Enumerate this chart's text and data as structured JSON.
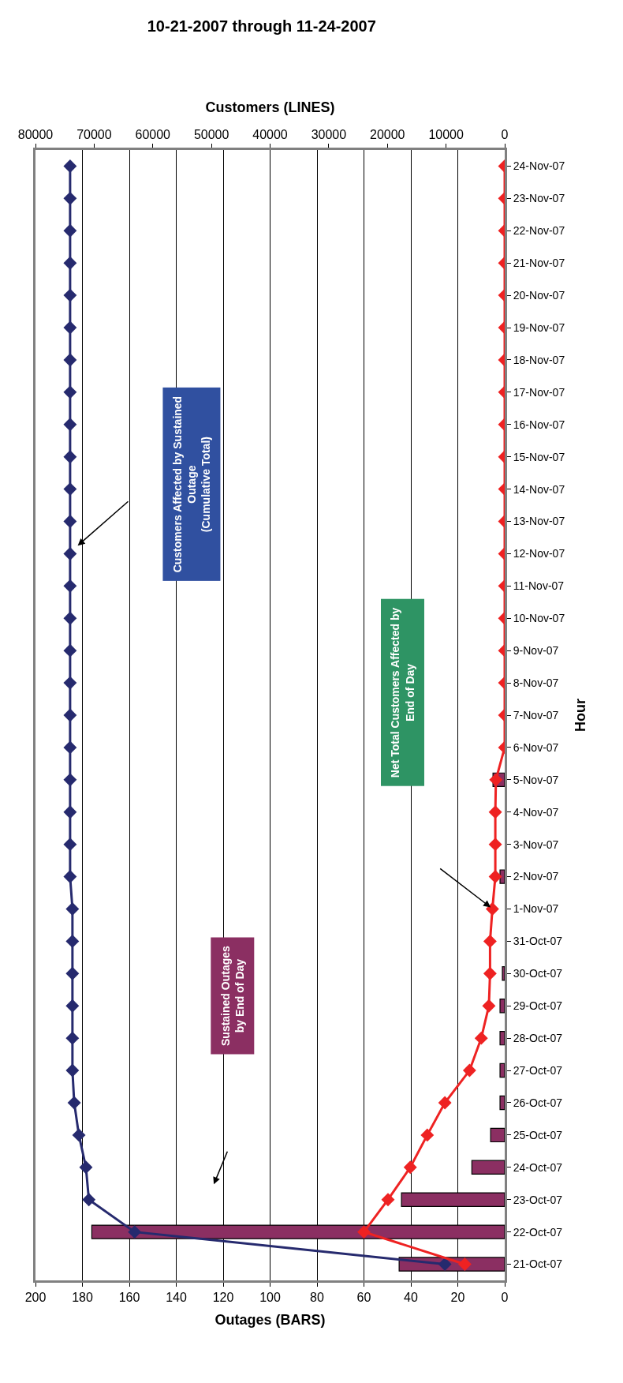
{
  "chart_data": {
    "type": "bar",
    "orientation": "horizontal",
    "title": "10-21-2007 through 11-24-2007",
    "xlabel": "Outages (BARS)",
    "x2label": "Customers (LINES)",
    "ylabel": "Hour",
    "categories": [
      "24-Nov-07",
      "23-Nov-07",
      "22-Nov-07",
      "21-Nov-07",
      "20-Nov-07",
      "19-Nov-07",
      "18-Nov-07",
      "17-Nov-07",
      "16-Nov-07",
      "15-Nov-07",
      "14-Nov-07",
      "13-Nov-07",
      "12-Nov-07",
      "11-Nov-07",
      "10-Nov-07",
      "9-Nov-07",
      "8-Nov-07",
      "7-Nov-07",
      "6-Nov-07",
      "5-Nov-07",
      "4-Nov-07",
      "3-Nov-07",
      "2-Nov-07",
      "1-Nov-07",
      "31-Oct-07",
      "30-Oct-07",
      "29-Oct-07",
      "28-Oct-07",
      "27-Oct-07",
      "26-Oct-07",
      "25-Oct-07",
      "24-Oct-07",
      "23-Oct-07",
      "22-Oct-07",
      "21-Oct-07"
    ],
    "series": [
      {
        "color": "#8b2f62",
        "values": [
          null,
          null,
          null,
          null,
          null,
          null,
          null,
          null,
          null,
          null,
          null,
          null,
          null,
          null,
          null,
          null,
          null,
          null,
          null,
          5,
          null,
          null,
          2,
          null,
          null,
          1,
          2,
          2,
          2,
          2,
          6,
          14,
          44,
          176,
          45
        ]
      },
      {
        "type": "line",
        "axis": "x2",
        "color": "#262a6e",
        "values": [
          74100,
          74100,
          74100,
          74100,
          74100,
          74100,
          74100,
          74100,
          74100,
          74100,
          74100,
          74100,
          74100,
          74100,
          74100,
          74100,
          74100,
          74100,
          74100,
          74100,
          74100,
          74100,
          74100,
          73700,
          73700,
          73700,
          73700,
          73700,
          73700,
          73400,
          72600,
          71400,
          70900,
          63100,
          10200
        ]
      },
      {
        "type": "line",
        "axis": "x2",
        "color": "#ee2222",
        "values": [
          0,
          0,
          0,
          0,
          0,
          0,
          0,
          0,
          0,
          0,
          0,
          0,
          0,
          0,
          0,
          0,
          0,
          0,
          0,
          1500,
          1600,
          1600,
          1600,
          2100,
          2500,
          2500,
          2700,
          4000,
          6000,
          10200,
          13200,
          16100,
          19900,
          24000,
          6800
        ]
      }
    ],
    "xlim": [
      200,
      0
    ],
    "xticks": [
      200,
      180,
      160,
      140,
      120,
      100,
      80,
      60,
      40,
      20,
      0
    ],
    "x2lim": [
      80000,
      0
    ],
    "x2ticks": [
      80000,
      70000,
      60000,
      50000,
      40000,
      30000,
      20000,
      10000,
      0
    ],
    "grid": "x",
    "marker": "diamond",
    "line_style": "solid",
    "annotations": [
      "Sustained Outages\nby End of Day",
      "Net Total Customers Affected by\nEnd of Day",
      "Customers Affected by Sustained\nOutage\n(Cumulative Total)"
    ]
  }
}
